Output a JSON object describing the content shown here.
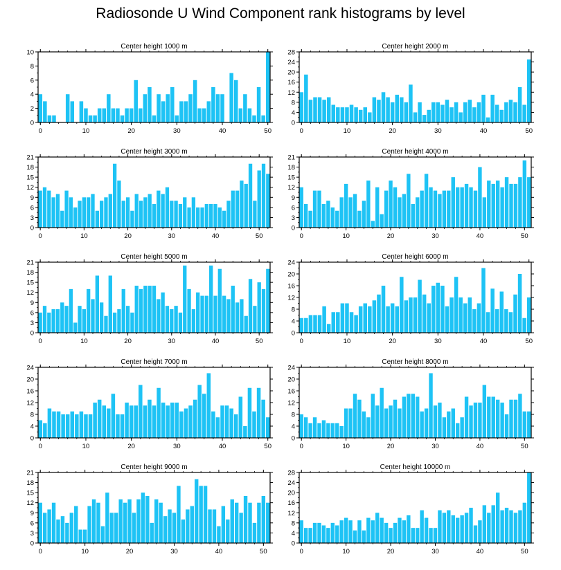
{
  "title": "Radiosonde U Wind Component rank histograms by level",
  "bar_color": "#1EC3F5",
  "chart_data": [
    {
      "type": "bar",
      "title": "Center height 1000 m",
      "ylim": [
        0,
        10
      ],
      "yticks": [
        0,
        2,
        4,
        6,
        8,
        10
      ],
      "xticks": [
        0,
        10,
        20,
        30,
        40,
        50
      ],
      "values": [
        4,
        3,
        1,
        1,
        0,
        0,
        4,
        3,
        0,
        3,
        2,
        1,
        1,
        2,
        2,
        4,
        2,
        2,
        1,
        2,
        2,
        6,
        2,
        4,
        5,
        1,
        4,
        3,
        4,
        5,
        1,
        3,
        3,
        4,
        6,
        2,
        2,
        3,
        5,
        4,
        4,
        0,
        7,
        6,
        2,
        4,
        2,
        1,
        5,
        1,
        10
      ]
    },
    {
      "type": "bar",
      "title": "Center height 2000 m",
      "ylim": [
        0,
        28
      ],
      "yticks": [
        0,
        4,
        8,
        12,
        16,
        20,
        24,
        28
      ],
      "xticks": [
        0,
        10,
        20,
        30,
        40,
        50
      ],
      "values": [
        12,
        19,
        9,
        10,
        10,
        9,
        10,
        7,
        6,
        6,
        6,
        7,
        6,
        5,
        6,
        4,
        10,
        9,
        12,
        10,
        8,
        11,
        10,
        8,
        15,
        4,
        8,
        3,
        5,
        8,
        8,
        7,
        9,
        6,
        8,
        4,
        8,
        9,
        6,
        8,
        11,
        2,
        11,
        7,
        5,
        8,
        9,
        8,
        14,
        7,
        25
      ]
    },
    {
      "type": "bar",
      "title": "Center height 3000 m",
      "ylim": [
        0,
        21
      ],
      "yticks": [
        0,
        3,
        6,
        9,
        12,
        15,
        18,
        21
      ],
      "xticks": [
        0,
        10,
        20,
        30,
        40,
        50
      ],
      "values": [
        11,
        12,
        11,
        9,
        10,
        5,
        11,
        9,
        6,
        8,
        9,
        9,
        10,
        5,
        8,
        9,
        10,
        19,
        14,
        8,
        9,
        5,
        10,
        8,
        9,
        10,
        7,
        11,
        10,
        12,
        8,
        8,
        7,
        9,
        6,
        9,
        6,
        6,
        7,
        7,
        7,
        6,
        5,
        8,
        11,
        11,
        14,
        13,
        19,
        8,
        17,
        19,
        16
      ]
    },
    {
      "type": "bar",
      "title": "Center height 4000 m",
      "ylim": [
        0,
        21
      ],
      "yticks": [
        0,
        3,
        6,
        9,
        12,
        15,
        18,
        21
      ],
      "xticks": [
        0,
        10,
        20,
        30,
        40,
        50
      ],
      "values": [
        12,
        7,
        5,
        11,
        11,
        7,
        8,
        6,
        5,
        9,
        13,
        9,
        10,
        5,
        8,
        14,
        2,
        12,
        4,
        11,
        14,
        12,
        9,
        10,
        16,
        7,
        9,
        11,
        16,
        12,
        11,
        10,
        11,
        11,
        15,
        12,
        12,
        13,
        12,
        11,
        18,
        9,
        14,
        13,
        14,
        12,
        15,
        13,
        13,
        15,
        20,
        15
      ]
    },
    {
      "type": "bar",
      "title": "Center height 5000 m",
      "ylim": [
        0,
        21
      ],
      "yticks": [
        0,
        3,
        6,
        9,
        12,
        15,
        18,
        21
      ],
      "xticks": [
        0,
        10,
        20,
        30,
        40,
        50
      ],
      "values": [
        6,
        8,
        6,
        7,
        7,
        9,
        8,
        13,
        3,
        8,
        7,
        13,
        10,
        17,
        9,
        5,
        17,
        6,
        7,
        13,
        8,
        6,
        14,
        13,
        14,
        14,
        14,
        10,
        12,
        8,
        7,
        8,
        6,
        20,
        13,
        7,
        12,
        11,
        11,
        20,
        11,
        19,
        11,
        10,
        14,
        9,
        10,
        5,
        16,
        8,
        15,
        13,
        19
      ]
    },
    {
      "type": "bar",
      "title": "Center height 6000 m",
      "ylim": [
        0,
        24
      ],
      "yticks": [
        0,
        4,
        8,
        12,
        16,
        20,
        24
      ],
      "xticks": [
        0,
        10,
        20,
        30,
        40,
        50
      ],
      "values": [
        5,
        5,
        6,
        6,
        6,
        9,
        3,
        7,
        7,
        10,
        10,
        7,
        6,
        9,
        10,
        9,
        11,
        13,
        16,
        9,
        10,
        9,
        19,
        11,
        12,
        12,
        18,
        13,
        10,
        16,
        17,
        16,
        9,
        12,
        19,
        12,
        10,
        12,
        8,
        10,
        22,
        7,
        15,
        8,
        14,
        8,
        7,
        13,
        20,
        5,
        12
      ]
    },
    {
      "type": "bar",
      "title": "Center height 7000 m",
      "ylim": [
        0,
        24
      ],
      "yticks": [
        0,
        4,
        8,
        12,
        16,
        20,
        24
      ],
      "xticks": [
        0,
        10,
        20,
        30,
        40,
        50
      ],
      "values": [
        6,
        5,
        10,
        9,
        9,
        8,
        8,
        9,
        8,
        9,
        8,
        8,
        12,
        13,
        11,
        10,
        15,
        8,
        8,
        12,
        11,
        11,
        18,
        11,
        13,
        11,
        17,
        12,
        11,
        12,
        12,
        9,
        10,
        11,
        13,
        18,
        15,
        22,
        9,
        7,
        11,
        11,
        10,
        8,
        14,
        4,
        17,
        9,
        17,
        13,
        7
      ]
    },
    {
      "type": "bar",
      "title": "Center height 8000 m",
      "ylim": [
        0,
        24
      ],
      "yticks": [
        0,
        4,
        8,
        12,
        16,
        20,
        24
      ],
      "xticks": [
        0,
        10,
        20,
        30,
        40,
        50
      ],
      "values": [
        8,
        7,
        5,
        7,
        5,
        6,
        5,
        5,
        5,
        4,
        10,
        10,
        15,
        13,
        9,
        7,
        15,
        11,
        17,
        10,
        11,
        13,
        10,
        14,
        15,
        15,
        14,
        9,
        10,
        22,
        11,
        12,
        7,
        9,
        10,
        5,
        7,
        14,
        11,
        12,
        12,
        18,
        14,
        14,
        13,
        12,
        8,
        13,
        13,
        15,
        9,
        9
      ]
    },
    {
      "type": "bar",
      "title": "Center height 9000 m",
      "ylim": [
        0,
        21
      ],
      "yticks": [
        0,
        3,
        6,
        9,
        12,
        15,
        18,
        21
      ],
      "xticks": [
        0,
        10,
        20,
        30,
        40,
        50
      ],
      "values": [
        12,
        9,
        10,
        12,
        7,
        8,
        6,
        9,
        11,
        4,
        4,
        11,
        13,
        12,
        5,
        15,
        9,
        9,
        13,
        12,
        13,
        9,
        13,
        15,
        14,
        6,
        13,
        12,
        8,
        10,
        9,
        17,
        7,
        10,
        11,
        19,
        17,
        17,
        10,
        10,
        5,
        11,
        7,
        13,
        12,
        9,
        14,
        12,
        6,
        12,
        14,
        12
      ]
    },
    {
      "type": "bar",
      "title": "Center height 10000 m",
      "ylim": [
        0,
        28
      ],
      "yticks": [
        0,
        4,
        8,
        12,
        16,
        20,
        24,
        28
      ],
      "xticks": [
        0,
        10,
        20,
        30,
        40,
        50
      ],
      "values": [
        9,
        6,
        6,
        8,
        8,
        7,
        6,
        8,
        7,
        9,
        10,
        9,
        5,
        9,
        5,
        10,
        9,
        12,
        10,
        8,
        6,
        8,
        10,
        9,
        11,
        6,
        6,
        13,
        10,
        6,
        6,
        13,
        12,
        13,
        11,
        10,
        11,
        12,
        14,
        7,
        9,
        15,
        12,
        15,
        20,
        13,
        14,
        13,
        12,
        13,
        16,
        28
      ]
    }
  ]
}
